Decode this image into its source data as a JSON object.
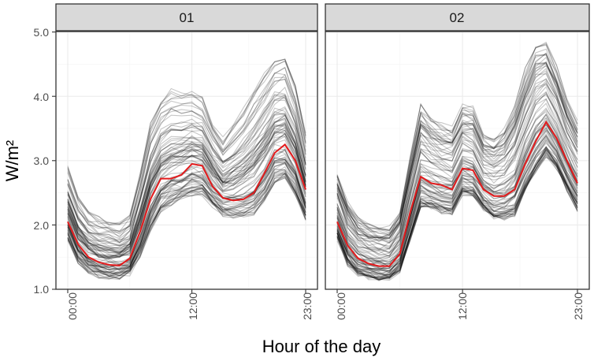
{
  "chart_data": {
    "type": "line",
    "ylabel": "W/m²",
    "xlabel": "Hour of the day",
    "ylim": [
      1.0,
      5.0
    ],
    "y_ticks": [
      "1.0",
      "2.0",
      "3.0",
      "4.0",
      "5.0"
    ],
    "x_ticks": [
      "00:00",
      "12:00",
      "23:00"
    ],
    "x_range": [
      0,
      23
    ],
    "grid": true,
    "colors": {
      "background_lines": "#000000",
      "highlight": "#e31a1c",
      "strip_fill": "#d9d9d9",
      "grid": "#ebebeb"
    },
    "panels": [
      {
        "label": "01",
        "highlight": [
          2.05,
          1.7,
          1.5,
          1.42,
          1.38,
          1.37,
          1.48,
          1.9,
          2.4,
          2.72,
          2.72,
          2.78,
          2.95,
          2.92,
          2.6,
          2.42,
          2.38,
          2.4,
          2.5,
          2.8,
          3.12,
          3.25,
          3.0,
          2.55
        ],
        "lower": [
          1.8,
          1.45,
          1.3,
          1.22,
          1.2,
          1.2,
          1.25,
          1.55,
          1.95,
          2.25,
          2.35,
          2.42,
          2.5,
          2.5,
          2.32,
          2.18,
          2.15,
          2.15,
          2.2,
          2.4,
          2.7,
          2.75,
          2.5,
          2.1
        ],
        "upper": [
          2.9,
          2.45,
          2.2,
          2.1,
          2.05,
          2.02,
          2.15,
          2.8,
          3.6,
          3.95,
          4.1,
          4.05,
          4.1,
          4.0,
          3.6,
          3.35,
          3.55,
          3.8,
          4.1,
          4.35,
          4.6,
          4.65,
          4.2,
          3.4
        ]
      },
      {
        "label": "02",
        "highlight": [
          2.05,
          1.68,
          1.48,
          1.4,
          1.36,
          1.36,
          1.55,
          2.2,
          2.75,
          2.65,
          2.62,
          2.55,
          2.88,
          2.85,
          2.55,
          2.45,
          2.45,
          2.55,
          2.95,
          3.3,
          3.6,
          3.35,
          3.0,
          2.65
        ],
        "lower": [
          1.8,
          1.4,
          1.25,
          1.2,
          1.17,
          1.18,
          1.3,
          1.8,
          2.3,
          2.28,
          2.22,
          2.2,
          2.5,
          2.48,
          2.25,
          2.12,
          2.12,
          2.18,
          2.55,
          2.85,
          3.1,
          2.9,
          2.55,
          2.25
        ],
        "upper": [
          2.8,
          2.35,
          2.1,
          2.0,
          1.95,
          1.95,
          2.2,
          3.05,
          3.85,
          3.65,
          3.55,
          3.5,
          3.85,
          3.8,
          3.4,
          3.35,
          3.5,
          3.85,
          4.4,
          4.8,
          4.85,
          4.45,
          3.95,
          3.6
        ]
      }
    ]
  }
}
